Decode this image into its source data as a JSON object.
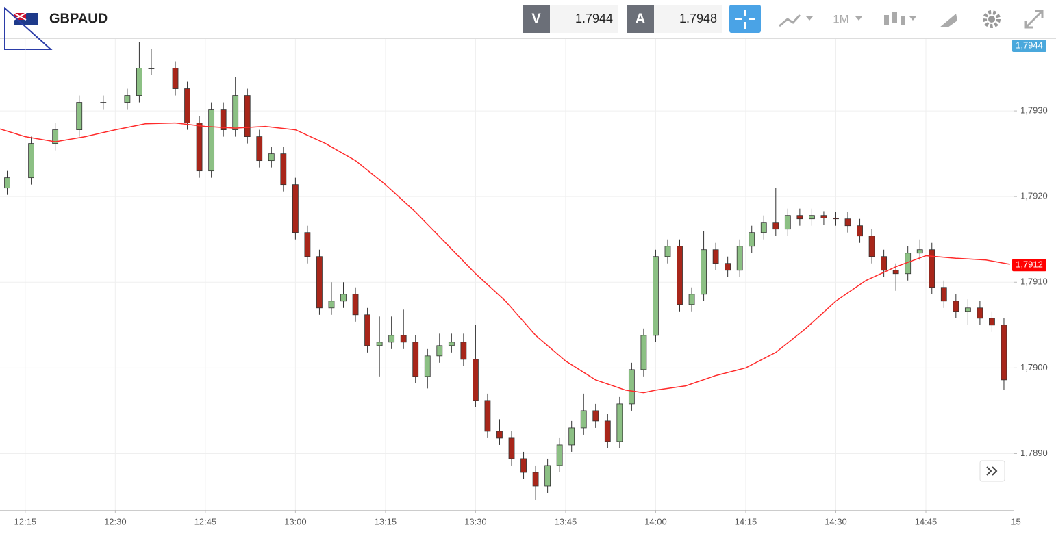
{
  "header": {
    "symbol": "GBPAUD",
    "bid_label": "V",
    "bid": "1.7944",
    "ask_label": "A",
    "ask": "1.7948",
    "timeframe": "1M"
  },
  "chart_data": {
    "type": "candlestick",
    "x": [
      732,
      736,
      740,
      744,
      748,
      752,
      754,
      756,
      760,
      762,
      764,
      766,
      768,
      770,
      772,
      774,
      776,
      778,
      780,
      782,
      784,
      786,
      788,
      790,
      792,
      794,
      796,
      798,
      800,
      802,
      804,
      806,
      808,
      810,
      812,
      814,
      816,
      818,
      820,
      822,
      824,
      826,
      828,
      830,
      832,
      834,
      836,
      838,
      840,
      842,
      844,
      846,
      848,
      850,
      852,
      854,
      856,
      858,
      860,
      862,
      864,
      866,
      868,
      870,
      872,
      874,
      876,
      878,
      880,
      882,
      884,
      886,
      888,
      890,
      892,
      894,
      896,
      898
    ],
    "open": [
      1.7921,
      1.79222,
      1.79262,
      1.79278,
      1.7931,
      1.7931,
      1.79318,
      1.7935,
      1.7935,
      1.79326,
      1.79286,
      1.7923,
      1.79302,
      1.79278,
      1.79318,
      1.7927,
      1.79242,
      1.7925,
      1.79214,
      1.79158,
      1.7913,
      1.7907,
      1.79078,
      1.79086,
      1.79062,
      1.79026,
      1.7903,
      1.79038,
      1.7903,
      1.7899,
      1.79014,
      1.79026,
      1.7903,
      1.7901,
      1.78962,
      1.78926,
      1.78918,
      1.78894,
      1.78878,
      1.78862,
      1.78886,
      1.7891,
      1.7893,
      1.7895,
      1.78938,
      1.78914,
      1.78958,
      1.78998,
      1.79038,
      1.7913,
      1.79142,
      1.79074,
      1.79086,
      1.79138,
      1.79122,
      1.79114,
      1.79142,
      1.79158,
      1.7917,
      1.79162,
      1.79178,
      1.79174,
      1.79178,
      1.79175,
      1.79174,
      1.79166,
      1.79154,
      1.7913,
      1.79114,
      1.7911,
      1.79134,
      1.79138,
      1.79094,
      1.79078,
      1.79066,
      1.7907,
      1.79058,
      1.7905
    ],
    "high": [
      1.7923,
      1.7927,
      1.79286,
      1.79318,
      1.79318,
      1.79326,
      1.7938,
      1.79372,
      1.79358,
      1.79334,
      1.79294,
      1.7931,
      1.7931,
      1.7934,
      1.79326,
      1.79278,
      1.79258,
      1.79258,
      1.79222,
      1.79166,
      1.79138,
      1.791,
      1.791,
      1.79094,
      1.7907,
      1.7906,
      1.7906,
      1.79068,
      1.79038,
      1.79022,
      1.7904,
      1.7904,
      1.7904,
      1.7905,
      1.7897,
      1.7894,
      1.78926,
      1.78902,
      1.78886,
      1.78894,
      1.78918,
      1.78938,
      1.7897,
      1.78958,
      1.78946,
      1.78966,
      1.79006,
      1.79046,
      1.79138,
      1.7915,
      1.7915,
      1.79094,
      1.7916,
      1.79146,
      1.7913,
      1.7915,
      1.79166,
      1.79178,
      1.7921,
      1.79186,
      1.79186,
      1.79186,
      1.79183,
      1.79182,
      1.79182,
      1.79174,
      1.79162,
      1.79138,
      1.79122,
      1.79142,
      1.7915,
      1.79146,
      1.79102,
      1.79086,
      1.7908,
      1.79078,
      1.79066,
      1.79058
    ],
    "low": [
      1.79202,
      1.79214,
      1.79254,
      1.7927,
      1.79302,
      1.79302,
      1.7931,
      1.79342,
      1.79318,
      1.79278,
      1.79222,
      1.79222,
      1.7927,
      1.7927,
      1.79262,
      1.79234,
      1.79234,
      1.79206,
      1.7915,
      1.79122,
      1.79062,
      1.79062,
      1.7907,
      1.79054,
      1.79018,
      1.7899,
      1.79022,
      1.79022,
      1.78982,
      1.78976,
      1.79006,
      1.79018,
      1.79002,
      1.78954,
      1.78918,
      1.7891,
      1.78886,
      1.7887,
      1.78846,
      1.78854,
      1.78878,
      1.78902,
      1.78922,
      1.7893,
      1.78906,
      1.78906,
      1.7895,
      1.7899,
      1.7903,
      1.79122,
      1.79066,
      1.79066,
      1.79078,
      1.79114,
      1.79106,
      1.79106,
      1.79134,
      1.7915,
      1.79154,
      1.79154,
      1.79166,
      1.79166,
      1.79167,
      1.79166,
      1.79158,
      1.79146,
      1.79122,
      1.79106,
      1.7909,
      1.79102,
      1.79126,
      1.79086,
      1.7907,
      1.79058,
      1.7905,
      1.7905,
      1.79042,
      1.78974
    ],
    "close": [
      1.79222,
      1.79262,
      1.79278,
      1.7931,
      1.7931,
      1.79318,
      1.7935,
      1.7935,
      1.79326,
      1.79286,
      1.7923,
      1.79302,
      1.79278,
      1.79318,
      1.7927,
      1.79242,
      1.7925,
      1.79214,
      1.79158,
      1.7913,
      1.7907,
      1.79078,
      1.79086,
      1.79062,
      1.79026,
      1.7903,
      1.79038,
      1.7903,
      1.7899,
      1.79014,
      1.79026,
      1.7903,
      1.7901,
      1.78962,
      1.78926,
      1.78918,
      1.78894,
      1.78878,
      1.78862,
      1.78886,
      1.7891,
      1.7893,
      1.7895,
      1.78938,
      1.78914,
      1.78958,
      1.78998,
      1.79038,
      1.7913,
      1.79142,
      1.79074,
      1.79086,
      1.79138,
      1.79122,
      1.79114,
      1.79142,
      1.79158,
      1.7917,
      1.79162,
      1.79178,
      1.79174,
      1.79178,
      1.79175,
      1.79174,
      1.79166,
      1.79154,
      1.7913,
      1.79114,
      1.7911,
      1.79134,
      1.79138,
      1.79094,
      1.79078,
      1.79066,
      1.7907,
      1.79058,
      1.7905,
      1.78986
    ],
    "up_color": "#8cc084",
    "down_color": "#a8261a",
    "moving_average": {
      "color": "#ff2a2a",
      "x": [
        730.8,
        735,
        740,
        745,
        750,
        755,
        760,
        765,
        770,
        775,
        780,
        785,
        790,
        795,
        800,
        805,
        810,
        815,
        820,
        825,
        830,
        835,
        838,
        840,
        845,
        850,
        855,
        860,
        865,
        870,
        875,
        880,
        885,
        890,
        895,
        899
      ],
      "values": [
        1.79279,
        1.7927,
        1.79264,
        1.7927,
        1.79278,
        1.79285,
        1.79286,
        1.79282,
        1.7928,
        1.79282,
        1.79278,
        1.79262,
        1.79242,
        1.79214,
        1.79182,
        1.79146,
        1.7911,
        1.79078,
        1.79038,
        1.79008,
        1.78986,
        1.78974,
        1.78971,
        1.78974,
        1.78979,
        1.78991,
        1.79,
        1.79018,
        1.79046,
        1.79078,
        1.79102,
        1.79118,
        1.79131,
        1.79128,
        1.79126,
        1.79121
      ]
    },
    "price_labels": [
      {
        "value": 1.7944,
        "label": "1,7944",
        "color": "#4aa8dc"
      },
      {
        "value": 1.7912,
        "label": "1,7912",
        "color": "#ff0000"
      }
    ],
    "xlim": [
      730.8,
      899.6
    ],
    "xticks": [
      {
        "value": 735,
        "label": "12:15"
      },
      {
        "value": 750,
        "label": "12:30"
      },
      {
        "value": 765,
        "label": "12:45"
      },
      {
        "value": 780,
        "label": "13:00"
      },
      {
        "value": 795,
        "label": "13:15"
      },
      {
        "value": 810,
        "label": "13:30"
      },
      {
        "value": 825,
        "label": "13:45"
      },
      {
        "value": 840,
        "label": "14:00"
      },
      {
        "value": 855,
        "label": "14:15"
      },
      {
        "value": 870,
        "label": "14:30"
      },
      {
        "value": 885,
        "label": "14:45"
      },
      {
        "value": 900,
        "label": "15"
      }
    ],
    "ylim": [
      1.78834,
      1.79384
    ],
    "yticks": [
      {
        "value": 1.789,
        "label": "1,7890"
      },
      {
        "value": 1.79,
        "label": "1,7900"
      },
      {
        "value": 1.791,
        "label": "1,7910"
      },
      {
        "value": 1.792,
        "label": "1,7920"
      },
      {
        "value": 1.793,
        "label": "1,7930"
      }
    ],
    "grid": true
  }
}
